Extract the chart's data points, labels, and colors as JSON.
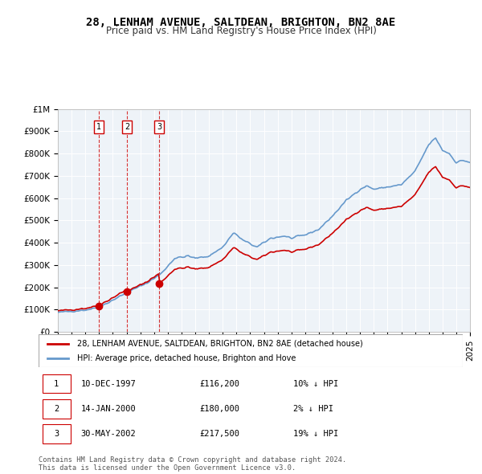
{
  "title": "28, LENHAM AVENUE, SALTDEAN, BRIGHTON, BN2 8AE",
  "subtitle": "Price paid vs. HM Land Registry's House Price Index (HPI)",
  "transactions": [
    {
      "label": "1",
      "date": "1997-12-10",
      "price": 116200,
      "pct": "10% ↓ HPI"
    },
    {
      "label": "2",
      "date": "2000-01-14",
      "price": 180000,
      "pct": "2% ↓ HPI"
    },
    {
      "label": "3",
      "date": "2002-05-30",
      "price": 217500,
      "pct": "19% ↓ HPI"
    }
  ],
  "legend_red": "28, LENHAM AVENUE, SALTDEAN, BRIGHTON, BN2 8AE (detached house)",
  "legend_blue": "HPI: Average price, detached house, Brighton and Hove",
  "footer": "Contains HM Land Registry data © Crown copyright and database right 2024.\nThis data is licensed under the Open Government Licence v3.0.",
  "red_color": "#cc0000",
  "blue_color": "#6699cc",
  "background_color": "#dde8f0",
  "plot_bg": "#eef3f8",
  "vline_color": "#cc0000",
  "marker_color": "#cc0000",
  "ylim": [
    0,
    1000000
  ],
  "yticks": [
    0,
    100000,
    200000,
    300000,
    400000,
    500000,
    600000,
    700000,
    800000,
    900000,
    1000000
  ],
  "ytick_labels": [
    "£0",
    "£100K",
    "£200K",
    "£300K",
    "£400K",
    "£500K",
    "£600K",
    "£700K",
    "£800K",
    "£900K",
    "£1M"
  ],
  "xstart": 1995,
  "xend": 2025
}
